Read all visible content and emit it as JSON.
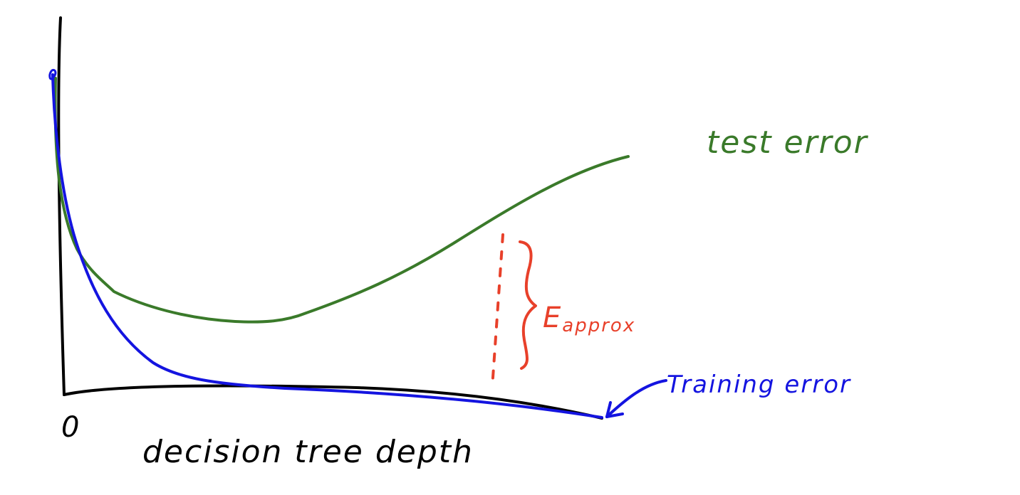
{
  "colors": {
    "axes": "#000000",
    "test_curve": "#3a7a2a",
    "train_curve": "#1414e0",
    "approx": "#e8402a"
  },
  "labels": {
    "test_error": "test error",
    "training_error": "Training error",
    "approx_symbol": "E",
    "approx_subscript": "approx",
    "origin": "0",
    "x_axis": "decision tree depth"
  },
  "icons": {
    "training_pointer": "arrow-icon",
    "gap_marker": "curly-brace-icon"
  }
}
